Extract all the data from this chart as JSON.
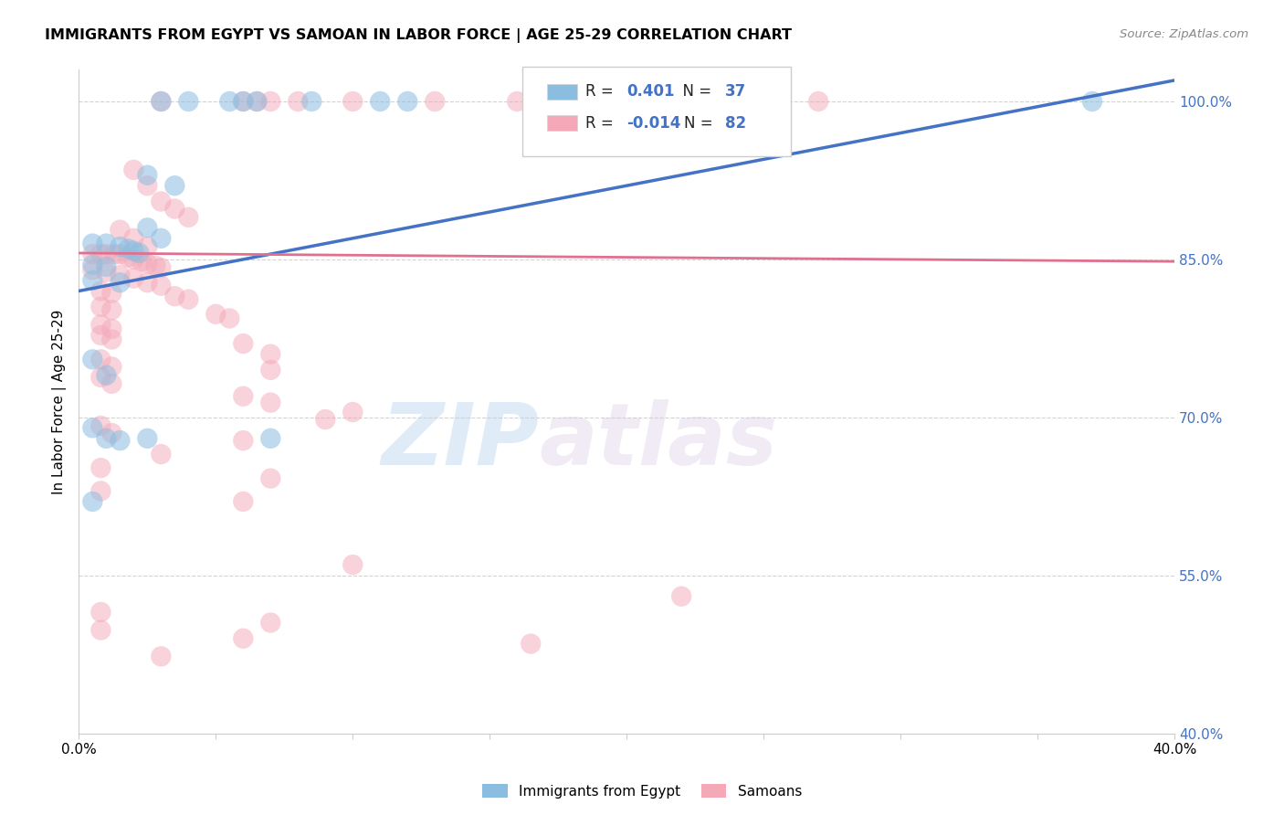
{
  "title": "IMMIGRANTS FROM EGYPT VS SAMOAN IN LABOR FORCE | AGE 25-29 CORRELATION CHART",
  "source": "Source: ZipAtlas.com",
  "ylabel": "In Labor Force | Age 25-29",
  "xlim": [
    0.0,
    0.4
  ],
  "ylim": [
    0.4,
    1.03
  ],
  "xticks": [
    0.0,
    0.05,
    0.1,
    0.15,
    0.2,
    0.25,
    0.3,
    0.35,
    0.4
  ],
  "xticklabels": [
    "0.0%",
    "",
    "",
    "",
    "",
    "",
    "",
    "",
    "40.0%"
  ],
  "ytick_values": [
    0.4,
    0.55,
    0.7,
    0.85,
    1.0
  ],
  "ytick_labels": [
    "40.0%",
    "55.0%",
    "70.0%",
    "85.0%",
    "100.0%"
  ],
  "legend_r_egypt": "0.401",
  "legend_n_egypt": "37",
  "legend_r_samoan": "-0.014",
  "legend_n_samoan": "82",
  "egypt_color": "#8bbde0",
  "samoan_color": "#f4a8b8",
  "egypt_line_color": "#4472c4",
  "samoan_line_color": "#e07090",
  "egypt_scatter": [
    [
      0.03,
      1.0
    ],
    [
      0.04,
      1.0
    ],
    [
      0.055,
      1.0
    ],
    [
      0.06,
      1.0
    ],
    [
      0.065,
      1.0
    ],
    [
      0.085,
      1.0
    ],
    [
      0.11,
      1.0
    ],
    [
      0.12,
      1.0
    ],
    [
      0.025,
      0.93
    ],
    [
      0.035,
      0.92
    ],
    [
      0.025,
      0.88
    ],
    [
      0.03,
      0.87
    ],
    [
      0.005,
      0.865
    ],
    [
      0.01,
      0.865
    ],
    [
      0.015,
      0.862
    ],
    [
      0.018,
      0.86
    ],
    [
      0.02,
      0.858
    ],
    [
      0.022,
      0.856
    ],
    [
      0.005,
      0.845
    ],
    [
      0.01,
      0.843
    ],
    [
      0.005,
      0.83
    ],
    [
      0.015,
      0.828
    ],
    [
      0.005,
      0.755
    ],
    [
      0.01,
      0.74
    ],
    [
      0.005,
      0.69
    ],
    [
      0.015,
      0.678
    ],
    [
      0.01,
      0.68
    ],
    [
      0.005,
      0.62
    ],
    [
      0.07,
      0.68
    ],
    [
      0.025,
      0.68
    ],
    [
      0.37,
      1.0
    ]
  ],
  "samoan_scatter": [
    [
      0.03,
      1.0
    ],
    [
      0.06,
      1.0
    ],
    [
      0.065,
      1.0
    ],
    [
      0.07,
      1.0
    ],
    [
      0.08,
      1.0
    ],
    [
      0.1,
      1.0
    ],
    [
      0.13,
      1.0
    ],
    [
      0.16,
      1.0
    ],
    [
      0.19,
      1.0
    ],
    [
      0.22,
      1.0
    ],
    [
      0.27,
      1.0
    ],
    [
      0.02,
      0.935
    ],
    [
      0.025,
      0.92
    ],
    [
      0.03,
      0.905
    ],
    [
      0.035,
      0.898
    ],
    [
      0.04,
      0.89
    ],
    [
      0.015,
      0.878
    ],
    [
      0.02,
      0.87
    ],
    [
      0.025,
      0.862
    ],
    [
      0.005,
      0.855
    ],
    [
      0.008,
      0.855
    ],
    [
      0.01,
      0.855
    ],
    [
      0.013,
      0.855
    ],
    [
      0.015,
      0.855
    ],
    [
      0.018,
      0.852
    ],
    [
      0.02,
      0.85
    ],
    [
      0.023,
      0.848
    ],
    [
      0.025,
      0.846
    ],
    [
      0.028,
      0.844
    ],
    [
      0.03,
      0.842
    ],
    [
      0.005,
      0.84
    ],
    [
      0.01,
      0.838
    ],
    [
      0.015,
      0.835
    ],
    [
      0.02,
      0.832
    ],
    [
      0.025,
      0.828
    ],
    [
      0.03,
      0.825
    ],
    [
      0.008,
      0.82
    ],
    [
      0.012,
      0.818
    ],
    [
      0.035,
      0.815
    ],
    [
      0.04,
      0.812
    ],
    [
      0.008,
      0.805
    ],
    [
      0.012,
      0.802
    ],
    [
      0.05,
      0.798
    ],
    [
      0.055,
      0.794
    ],
    [
      0.008,
      0.788
    ],
    [
      0.012,
      0.784
    ],
    [
      0.008,
      0.778
    ],
    [
      0.012,
      0.774
    ],
    [
      0.06,
      0.77
    ],
    [
      0.07,
      0.76
    ],
    [
      0.008,
      0.755
    ],
    [
      0.012,
      0.748
    ],
    [
      0.07,
      0.745
    ],
    [
      0.008,
      0.738
    ],
    [
      0.012,
      0.732
    ],
    [
      0.06,
      0.72
    ],
    [
      0.07,
      0.714
    ],
    [
      0.1,
      0.705
    ],
    [
      0.09,
      0.698
    ],
    [
      0.008,
      0.692
    ],
    [
      0.012,
      0.685
    ],
    [
      0.06,
      0.678
    ],
    [
      0.03,
      0.665
    ],
    [
      0.008,
      0.652
    ],
    [
      0.07,
      0.642
    ],
    [
      0.008,
      0.63
    ],
    [
      0.06,
      0.62
    ],
    [
      0.1,
      0.56
    ],
    [
      0.22,
      0.53
    ],
    [
      0.008,
      0.515
    ],
    [
      0.07,
      0.505
    ],
    [
      0.008,
      0.498
    ],
    [
      0.06,
      0.49
    ],
    [
      0.165,
      0.485
    ],
    [
      0.03,
      0.473
    ]
  ],
  "watermark_zip": "ZIP",
  "watermark_atlas": "atlas",
  "background_color": "#ffffff",
  "grid_color": "#c8c8c8"
}
